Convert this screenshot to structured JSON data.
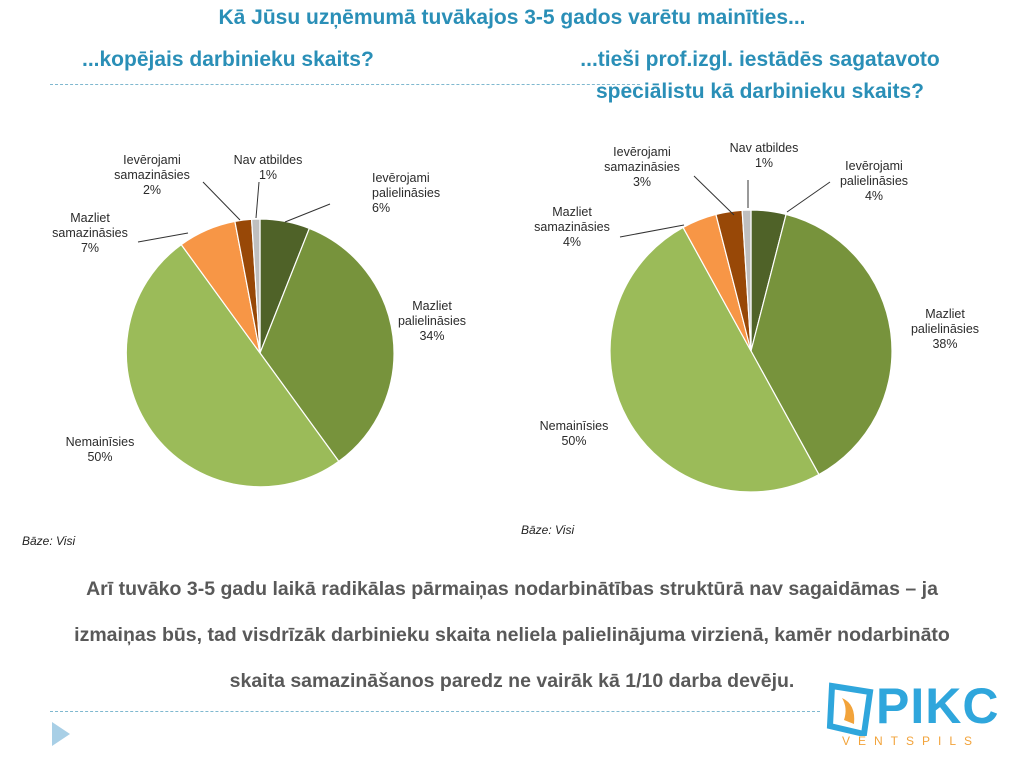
{
  "header": {
    "title": "Kā Jūsu uzņēmumā tuvākajos 3-5 gados varētu mainīties...",
    "left_subtitle": "...kopējais darbinieku skaits?",
    "right_subtitle_line1": "...tieši prof.izgl. iestādēs sagatavoto",
    "right_subtitle_line2": "speciālistu kā darbinieku skaits?"
  },
  "chart_data": [
    {
      "type": "pie",
      "title": "...kopējais darbinieku skaits?",
      "start_angle_deg": 0,
      "direction": "clockwise",
      "slices": [
        {
          "label": [
            "Ievērojami",
            "palielināsies"
          ],
          "value": 6,
          "display": "6%",
          "color": "#4f6228"
        },
        {
          "label": [
            "Mazliet",
            "palielināsies"
          ],
          "value": 34,
          "display": "34%",
          "color": "#77933c"
        },
        {
          "label": [
            "Nemainīsies"
          ],
          "value": 50,
          "display": "50%",
          "color": "#9bbb59"
        },
        {
          "label": [
            "Mazliet",
            "samazināsies"
          ],
          "value": 7,
          "display": "7%",
          "color": "#f79646"
        },
        {
          "label": [
            "Ievērojami",
            "samazināsies"
          ],
          "value": 2,
          "display": "2%",
          "color": "#984807"
        },
        {
          "label": [
            "Nav atbildes"
          ],
          "value": 1,
          "display": "1%",
          "color": "#bfbfbf"
        }
      ],
      "base_note": "Bāze: Visi"
    },
    {
      "type": "pie",
      "title": "...tieši prof.izgl. iestādēs sagatavoto speciālistu kā darbinieku skaits?",
      "start_angle_deg": 0,
      "direction": "clockwise",
      "slices": [
        {
          "label": [
            "Ievērojami",
            "palielināsies"
          ],
          "value": 4,
          "display": "4%",
          "color": "#4f6228"
        },
        {
          "label": [
            "Mazliet",
            "palielināsies"
          ],
          "value": 38,
          "display": "38%",
          "color": "#77933c"
        },
        {
          "label": [
            "Nemainīsies"
          ],
          "value": 50,
          "display": "50%",
          "color": "#9bbb59"
        },
        {
          "label": [
            "Mazliet",
            "samazināsies"
          ],
          "value": 4,
          "display": "4%",
          "color": "#f79646"
        },
        {
          "label": [
            "Ievērojami",
            "samazināsies"
          ],
          "value": 3,
          "display": "3%",
          "color": "#984807"
        },
        {
          "label": [
            "Nav atbildes"
          ],
          "value": 1,
          "display": "1%",
          "color": "#bfbfbf"
        }
      ],
      "base_note": "Bāze: Visi"
    }
  ],
  "body": {
    "line1": "Arī tuvāko 3-5 gadu laikā radikālas pārmaiņas nodarbinātības struktūrā nav sagaidāmas – ja",
    "line2": "izmaiņas būs, tad visdrīzāk darbinieku skaita neliela palielinājuma virzienā, kamēr nodarbināto",
    "line3": "skaita samazināšanos paredz ne vairāk kā 1/10 darba devēju."
  },
  "logo": {
    "name": "PIKC",
    "sub": "VENTSPILS",
    "colors": {
      "blue": "#2fa6dc",
      "orange": "#f2a33a"
    }
  },
  "nav": {
    "icon": "play-arrow-icon"
  }
}
